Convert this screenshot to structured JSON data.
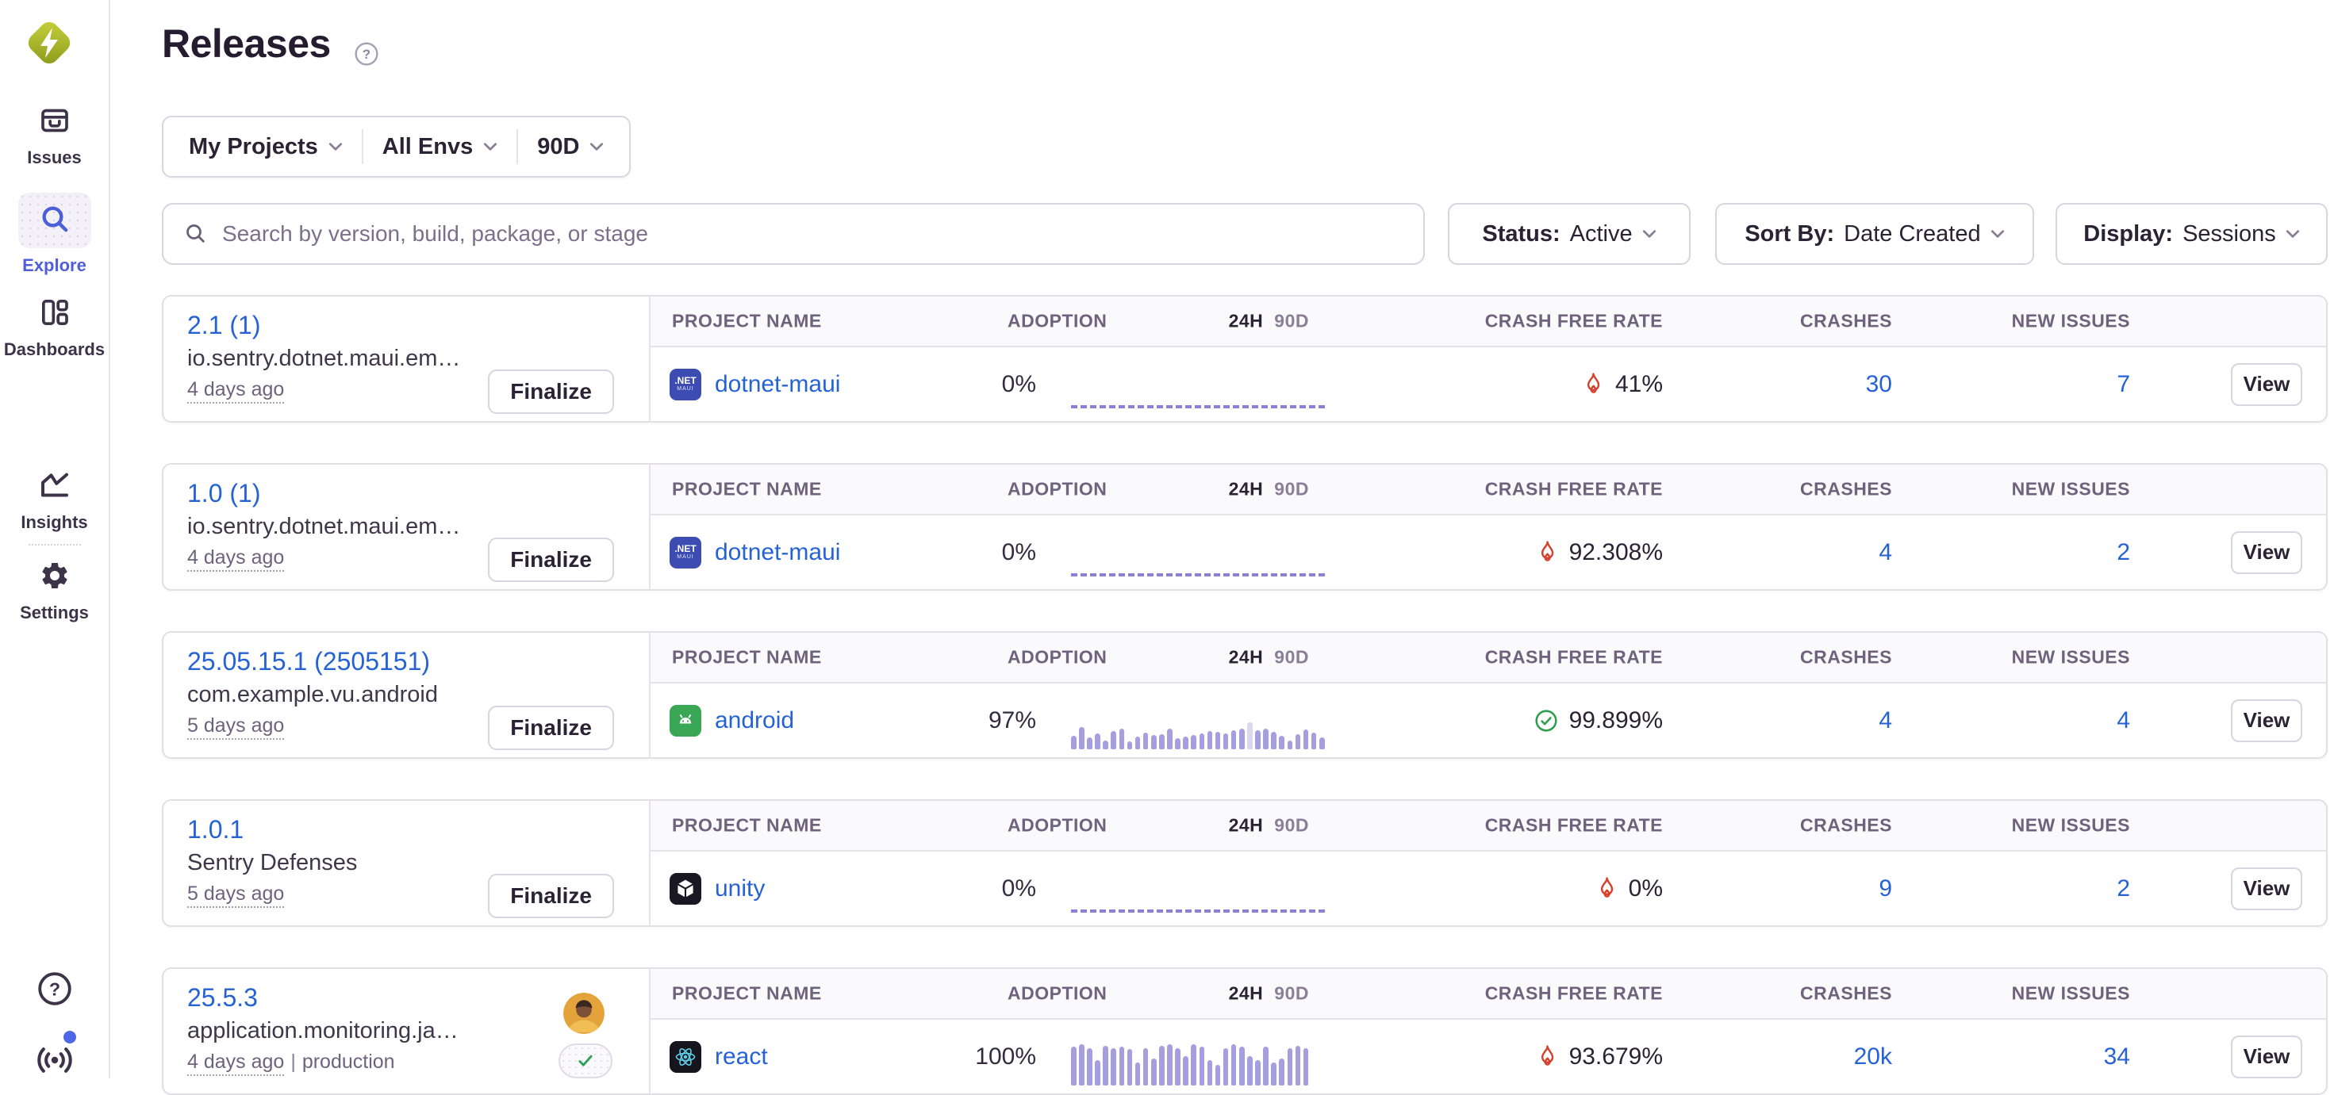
{
  "sidebar": {
    "items": [
      {
        "label": "Issues"
      },
      {
        "label": "Explore",
        "active": true
      },
      {
        "label": "Dashboards"
      },
      {
        "label": "Insights"
      },
      {
        "label": "Settings"
      }
    ]
  },
  "header": {
    "title": "Releases"
  },
  "filter_bar": {
    "projects": "My Projects",
    "environments": "All Envs",
    "date_range": "90D"
  },
  "search": {
    "placeholder": "Search by version, build, package, or stage"
  },
  "toolbar": {
    "status_label": "Status:",
    "status_value": "Active",
    "sort_label": "Sort By:",
    "sort_value": "Date Created",
    "display_label": "Display:",
    "display_value": "Sessions"
  },
  "table": {
    "headers": {
      "project": "PROJECT NAME",
      "adoption": "ADOPTION",
      "h24": "24H",
      "d90": "90D",
      "crash_free": "CRASH FREE RATE",
      "crashes": "CRASHES",
      "new_issues": "NEW ISSUES"
    }
  },
  "actions": {
    "finalize": "Finalize",
    "view": "View"
  },
  "releases": [
    {
      "version": "2.1 (1)",
      "package": "io.sentry.dotnet.maui.em…",
      "created": "4 days ago",
      "project": "dotnet-maui",
      "platform_icon": "dotnet-maui-icon",
      "adoption": "0%",
      "sessions_chart": {
        "type": "flat-dashed"
      },
      "crash_free_rate": "41%",
      "crash_free_status": "poor",
      "crashes": "30",
      "new_issues": "7"
    },
    {
      "version": "1.0 (1)",
      "package": "io.sentry.dotnet.maui.em…",
      "created": "4 days ago",
      "project": "dotnet-maui",
      "platform_icon": "dotnet-maui-icon",
      "adoption": "0%",
      "sessions_chart": {
        "type": "flat-dashed"
      },
      "crash_free_rate": "92.308%",
      "crash_free_status": "poor",
      "crashes": "4",
      "new_issues": "2"
    },
    {
      "version": "25.05.15.1 (2505151)",
      "package": "com.example.vu.android",
      "created": "5 days ago",
      "project": "android",
      "platform_icon": "android-icon",
      "adoption": "97%",
      "sessions_chart": {
        "type": "bars",
        "max_height": 34,
        "highlight_index": 22,
        "values": [
          0.5,
          0.82,
          0.45,
          0.58,
          0.33,
          0.68,
          0.75,
          0.3,
          0.48,
          0.62,
          0.52,
          0.56,
          0.76,
          0.4,
          0.46,
          0.52,
          0.6,
          0.68,
          0.64,
          0.6,
          0.7,
          0.76,
          1.0,
          0.72,
          0.76,
          0.66,
          0.5,
          0.32,
          0.56,
          0.74,
          0.62,
          0.45
        ]
      },
      "crash_free_rate": "99.899%",
      "crash_free_status": "healthy",
      "crashes": "4",
      "new_issues": "4"
    },
    {
      "version": "1.0.1",
      "package": "Sentry Defenses",
      "created": "5 days ago",
      "project": "unity",
      "platform_icon": "unity-icon",
      "adoption": "0%",
      "sessions_chart": {
        "type": "flat-dashed"
      },
      "crash_free_rate": "0%",
      "crash_free_status": "poor",
      "crashes": "9",
      "new_issues": "2"
    },
    {
      "version": "25.5.3",
      "package": "application.monitoring.ja…",
      "created": "4 days ago",
      "separator": "|",
      "environment": "production",
      "project": "react",
      "platform_icon": "react-icon",
      "adoption": "100%",
      "sessions_chart": {
        "type": "bars",
        "max_height": 52,
        "values": [
          0.95,
          1,
          0.9,
          0.62,
          0.96,
          0.9,
          0.95,
          0.88,
          0.56,
          0.9,
          0.66,
          0.96,
          1,
          0.9,
          0.72,
          1,
          0.95,
          0.62,
          0.5,
          0.9,
          1,
          0.95,
          0.72,
          0.62,
          0.95,
          0.55,
          0.66,
          0.9,
          0.96,
          0.9
        ]
      },
      "crash_free_rate": "93.679%",
      "crash_free_status": "poor",
      "crashes": "20k",
      "new_issues": "34"
    }
  ],
  "colors": {
    "link_blue": "#2562D4",
    "bar_purple": "#A79EDF",
    "dashed_purple": "#8B80D8",
    "fire_red": "#D6402C",
    "check_green": "#2F9E4F",
    "text_dark": "#2B2233",
    "text_muted": "#6F627D",
    "border": "#E2DEE6",
    "active_nav": "#4F5FD9"
  }
}
